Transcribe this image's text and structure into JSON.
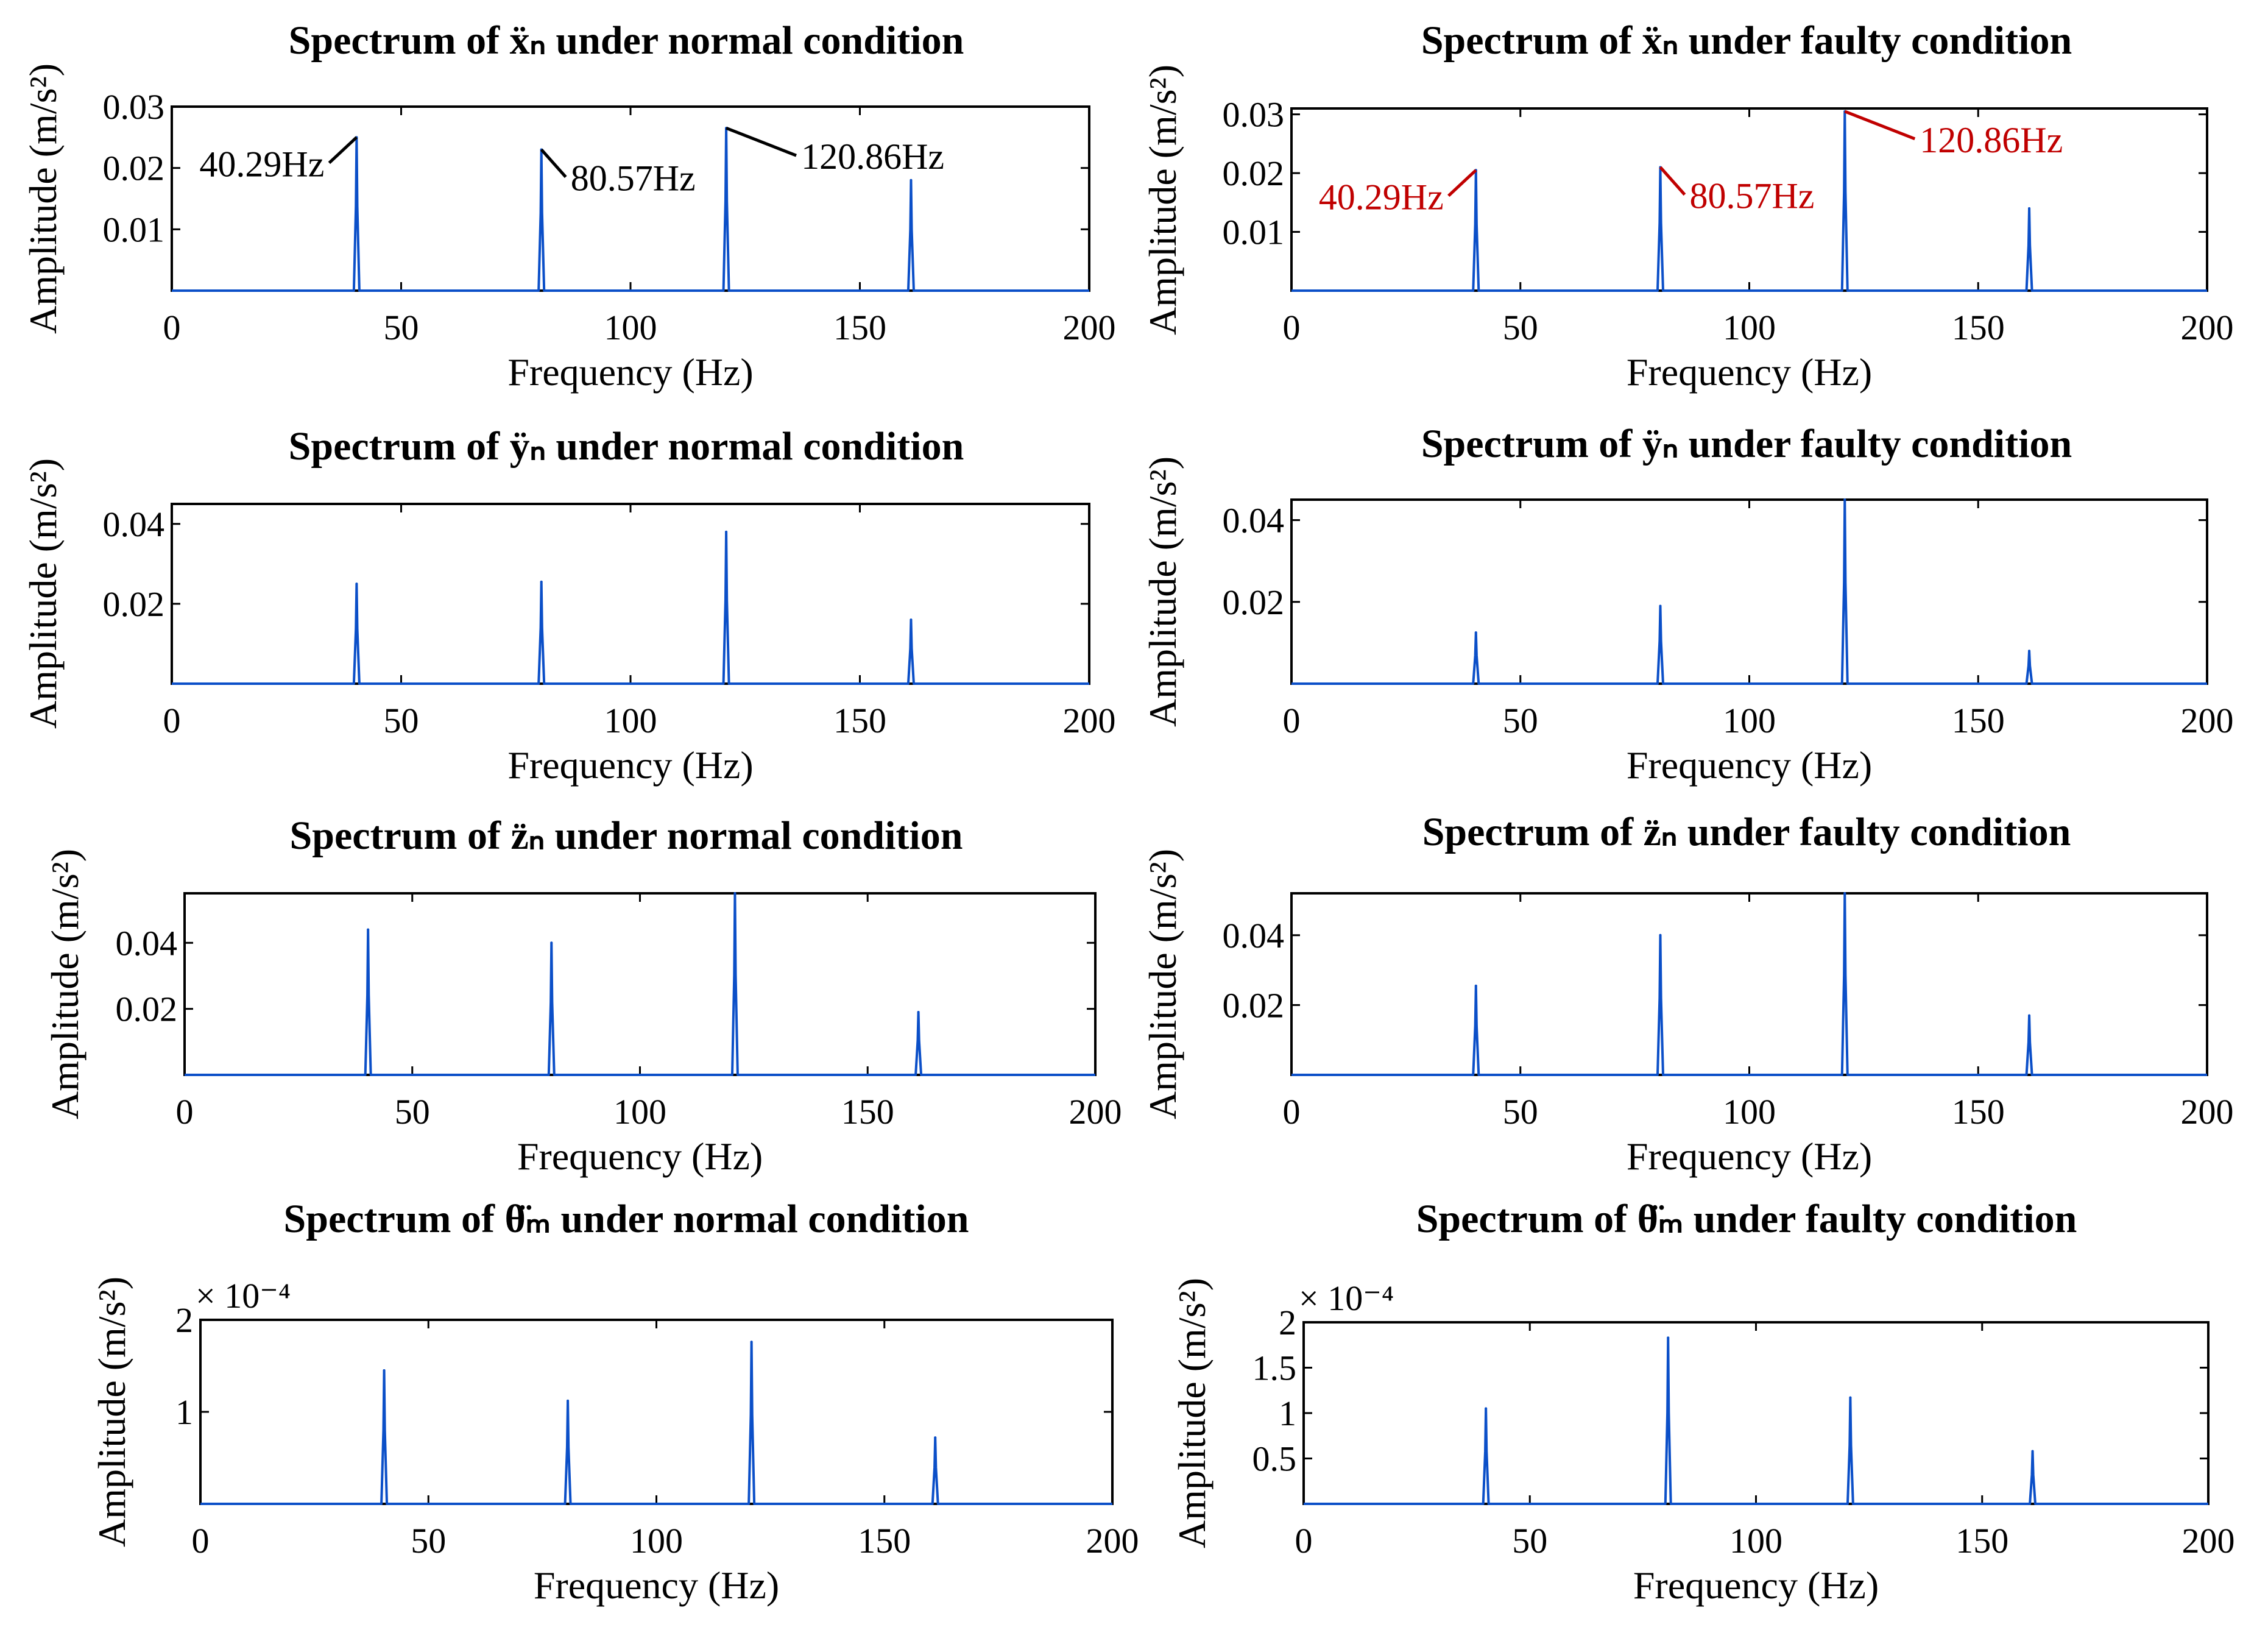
{
  "figure": {
    "line_color": "#0b4fc8",
    "fault_annotation_color": "#c00000",
    "normal_annotation_color": "#000000",
    "xlabel": "Frequency (Hz)",
    "ylabel": "Amplitude (m/s²)",
    "exponent_label": "× 10⁻⁴"
  },
  "chart_data": [
    {
      "id": "xn-normal",
      "type": "line",
      "title": "Spectrum of ẍₙ under normal condition",
      "xlabel": "Frequency (Hz)",
      "ylabel": "Amplitude (m/s²)",
      "xlim": [
        0,
        200
      ],
      "ylim": [
        0,
        0.03
      ],
      "xticks": [
        "0",
        "50",
        "100",
        "150",
        "200"
      ],
      "yticks": [
        {
          "value": 0.01,
          "label": "0.01"
        },
        {
          "value": 0.02,
          "label": "0.02"
        },
        {
          "value": 0.03,
          "label": "0.03"
        }
      ],
      "peaks": [
        {
          "x": 40.29,
          "y": 0.025
        },
        {
          "x": 80.57,
          "y": 0.023
        },
        {
          "x": 120.86,
          "y": 0.0265
        },
        {
          "x": 161.15,
          "y": 0.018
        }
      ],
      "annotations": [
        {
          "peak": 0,
          "text": "40.29Hz",
          "side": "left"
        },
        {
          "peak": 1,
          "text": "80.57Hz",
          "side": "right"
        },
        {
          "peak": 2,
          "text": "120.86Hz",
          "side": "right"
        }
      ],
      "annotation_color": "#000000"
    },
    {
      "id": "xn-faulty",
      "type": "line",
      "title": "Spectrum of ẍₙ under faulty condition",
      "xlabel": "Frequency (Hz)",
      "ylabel": "Amplitude (m/s²)",
      "xlim": [
        0,
        200
      ],
      "ylim": [
        0,
        0.031
      ],
      "xticks": [
        "0",
        "50",
        "100",
        "150",
        "200"
      ],
      "yticks": [
        {
          "value": 0.01,
          "label": "0.01"
        },
        {
          "value": 0.02,
          "label": "0.02"
        },
        {
          "value": 0.03,
          "label": "0.03"
        }
      ],
      "peaks": [
        {
          "x": 40.29,
          "y": 0.0205
        },
        {
          "x": 80.57,
          "y": 0.021
        },
        {
          "x": 120.86,
          "y": 0.0305
        },
        {
          "x": 161.15,
          "y": 0.014
        }
      ],
      "annotations": [
        {
          "peak": 0,
          "text": "40.29Hz",
          "side": "left"
        },
        {
          "peak": 1,
          "text": "80.57Hz",
          "side": "right"
        },
        {
          "peak": 2,
          "text": "120.86Hz",
          "side": "right"
        }
      ],
      "annotation_color": "#c00000"
    },
    {
      "id": "yn-normal",
      "type": "line",
      "title": "Spectrum of ÿₙ under normal condition",
      "xlabel": "Frequency (Hz)",
      "ylabel": "Amplitude (m/s²)",
      "xlim": [
        0,
        200
      ],
      "ylim": [
        0,
        0.045
      ],
      "xticks": [
        "0",
        "50",
        "100",
        "150",
        "200"
      ],
      "yticks": [
        {
          "value": 0.02,
          "label": "0.02"
        },
        {
          "value": 0.04,
          "label": "0.04"
        }
      ],
      "peaks": [
        {
          "x": 40.29,
          "y": 0.025
        },
        {
          "x": 80.57,
          "y": 0.0255
        },
        {
          "x": 120.86,
          "y": 0.038
        },
        {
          "x": 161.15,
          "y": 0.016
        }
      ],
      "annotations": []
    },
    {
      "id": "yn-faulty",
      "type": "line",
      "title": "Spectrum of ÿₙ under faulty condition",
      "xlabel": "Frequency (Hz)",
      "ylabel": "Amplitude (m/s²)",
      "xlim": [
        0,
        200
      ],
      "ylim": [
        0,
        0.045
      ],
      "xticks": [
        "0",
        "50",
        "100",
        "150",
        "200"
      ],
      "yticks": [
        {
          "value": 0.02,
          "label": "0.02"
        },
        {
          "value": 0.04,
          "label": "0.04"
        }
      ],
      "peaks": [
        {
          "x": 40.29,
          "y": 0.0125
        },
        {
          "x": 80.57,
          "y": 0.019
        },
        {
          "x": 120.86,
          "y": 0.045
        },
        {
          "x": 161.15,
          "y": 0.008
        }
      ],
      "annotations": []
    },
    {
      "id": "zn-normal",
      "type": "line",
      "title": "Spectrum of z̈ₙ under normal condition",
      "xlabel": "Frequency (Hz)",
      "ylabel": "Amplitude (m/s²)",
      "xlim": [
        0,
        200
      ],
      "ylim": [
        0,
        0.055
      ],
      "xticks": [
        "0",
        "50",
        "100",
        "150",
        "200"
      ],
      "yticks": [
        {
          "value": 0.02,
          "label": "0.02"
        },
        {
          "value": 0.04,
          "label": "0.04"
        }
      ],
      "peaks": [
        {
          "x": 40.29,
          "y": 0.044
        },
        {
          "x": 80.57,
          "y": 0.04
        },
        {
          "x": 120.86,
          "y": 0.055
        },
        {
          "x": 161.15,
          "y": 0.019
        }
      ],
      "annotations": []
    },
    {
      "id": "zn-faulty",
      "type": "line",
      "title": "Spectrum of z̈ₙ under faulty condition",
      "xlabel": "Frequency (Hz)",
      "ylabel": "Amplitude (m/s²)",
      "xlim": [
        0,
        200
      ],
      "ylim": [
        0,
        0.052
      ],
      "xticks": [
        "0",
        "50",
        "100",
        "150",
        "200"
      ],
      "yticks": [
        {
          "value": 0.02,
          "label": "0.02"
        },
        {
          "value": 0.04,
          "label": "0.04"
        }
      ],
      "peaks": [
        {
          "x": 40.29,
          "y": 0.0255
        },
        {
          "x": 80.57,
          "y": 0.04
        },
        {
          "x": 120.86,
          "y": 0.052
        },
        {
          "x": 161.15,
          "y": 0.017
        }
      ],
      "annotations": []
    },
    {
      "id": "thm-normal",
      "type": "line",
      "title": "Spectrum of θ̈ₘ under normal condition",
      "xlabel": "Frequency (Hz)",
      "ylabel": "Amplitude (m/s²)",
      "xlim": [
        0,
        200
      ],
      "ylim": [
        0,
        2
      ],
      "y_scale_label": "× 10⁻⁴",
      "xticks": [
        "0",
        "50",
        "100",
        "150",
        "200"
      ],
      "yticks": [
        {
          "value": 1,
          "label": "1"
        },
        {
          "value": 2,
          "label": "2"
        }
      ],
      "peaks": [
        {
          "x": 40.29,
          "y": 1.45
        },
        {
          "x": 80.57,
          "y": 1.12
        },
        {
          "x": 120.86,
          "y": 1.76
        },
        {
          "x": 161.15,
          "y": 0.72
        }
      ],
      "annotations": []
    },
    {
      "id": "thm-faulty",
      "type": "line",
      "title": "Spectrum of θ̈ₘ under faulty condition",
      "xlabel": "Frequency (Hz)",
      "ylabel": "Amplitude (m/s²)",
      "xlim": [
        0,
        200
      ],
      "ylim": [
        0,
        2
      ],
      "y_scale_label": "× 10⁻⁴",
      "xticks": [
        "0",
        "50",
        "100",
        "150",
        "200"
      ],
      "yticks": [
        {
          "value": 0.5,
          "label": "0.5"
        },
        {
          "value": 1,
          "label": "1"
        },
        {
          "value": 1.5,
          "label": "1.5"
        },
        {
          "value": 2,
          "label": "2"
        }
      ],
      "peaks": [
        {
          "x": 40.29,
          "y": 1.05
        },
        {
          "x": 80.57,
          "y": 1.83
        },
        {
          "x": 120.86,
          "y": 1.17
        },
        {
          "x": 161.15,
          "y": 0.58
        }
      ],
      "annotations": []
    }
  ]
}
